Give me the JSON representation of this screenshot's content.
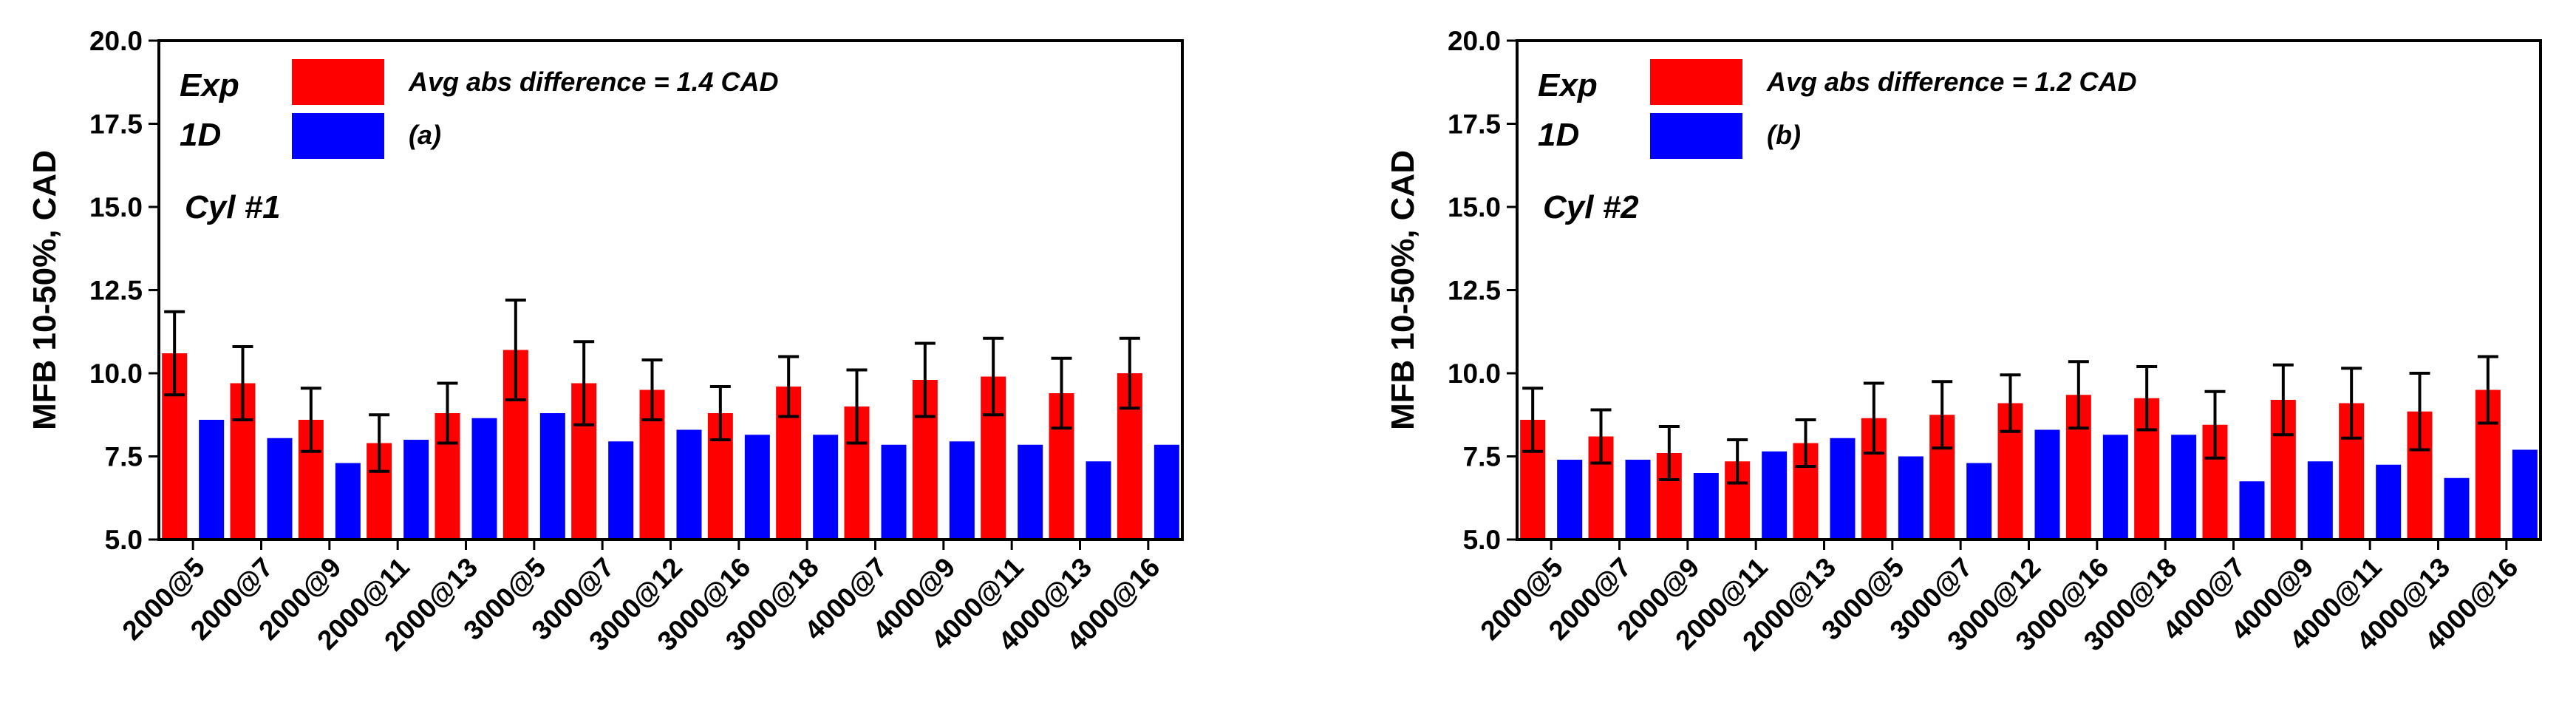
{
  "colors": {
    "exp": "#ff0000",
    "sim": "#0000ff",
    "axis": "#000000"
  },
  "chart_data": [
    {
      "type": "bar",
      "title": "",
      "xlabel": "",
      "ylabel": "MFB 10-50%, CAD",
      "ylim": [
        5.0,
        20.0
      ],
      "yticks": [
        "5.0",
        "7.5",
        "10.0",
        "12.5",
        "15.0",
        "17.5",
        "20.0"
      ],
      "categories": [
        "2000@5",
        "2000@7",
        "2000@9",
        "2000@11",
        "2000@13",
        "3000@5",
        "3000@7",
        "3000@12",
        "3000@16",
        "3000@18",
        "4000@7",
        "4000@9",
        "4000@11",
        "4000@13",
        "4000@16"
      ],
      "series": [
        {
          "name": "Exp",
          "values": [
            10.6,
            9.7,
            8.6,
            7.9,
            8.8,
            10.7,
            9.7,
            9.5,
            8.8,
            9.6,
            9.0,
            9.8,
            9.9,
            9.4,
            10.0
          ],
          "error": [
            1.25,
            1.1,
            0.95,
            0.85,
            0.9,
            1.5,
            1.25,
            0.9,
            0.8,
            0.9,
            1.1,
            1.1,
            1.15,
            1.05,
            1.05
          ]
        },
        {
          "name": "1D",
          "values": [
            8.6,
            8.05,
            7.3,
            8.0,
            8.65,
            8.8,
            7.95,
            8.3,
            8.15,
            8.15,
            7.85,
            7.95,
            7.85,
            7.35,
            7.85
          ]
        }
      ],
      "legend": {
        "exp": "Exp",
        "sim": "1D"
      },
      "annotation": "Avg abs difference = 1.4 CAD",
      "panel_label": "(a)",
      "cylinder_label": "Cyl #1"
    },
    {
      "type": "bar",
      "title": "",
      "xlabel": "",
      "ylabel": "MFB 10-50%, CAD",
      "ylim": [
        5.0,
        20.0
      ],
      "yticks": [
        "5.0",
        "7.5",
        "10.0",
        "12.5",
        "15.0",
        "17.5",
        "20.0"
      ],
      "categories": [
        "2000@5",
        "2000@7",
        "2000@9",
        "2000@11",
        "2000@13",
        "3000@5",
        "3000@7",
        "3000@12",
        "3000@16",
        "3000@18",
        "4000@7",
        "4000@9",
        "4000@11",
        "4000@13",
        "4000@16"
      ],
      "series": [
        {
          "name": "Exp",
          "values": [
            8.6,
            8.1,
            7.6,
            7.35,
            7.9,
            8.65,
            8.75,
            9.1,
            9.35,
            9.25,
            8.45,
            9.2,
            9.1,
            8.85,
            9.5
          ],
          "error": [
            0.95,
            0.8,
            0.8,
            0.65,
            0.7,
            1.05,
            1.0,
            0.85,
            1.0,
            0.95,
            1.0,
            1.05,
            1.05,
            1.15,
            1.0
          ]
        },
        {
          "name": "1D",
          "values": [
            7.4,
            7.4,
            7.0,
            7.65,
            8.05,
            7.5,
            7.3,
            8.3,
            8.15,
            8.15,
            6.75,
            7.35,
            7.25,
            6.85,
            7.7
          ]
        }
      ],
      "legend": {
        "exp": "Exp",
        "sim": "1D"
      },
      "annotation": "Avg abs difference = 1.2 CAD",
      "panel_label": "(b)",
      "cylinder_label": "Cyl #2"
    }
  ]
}
